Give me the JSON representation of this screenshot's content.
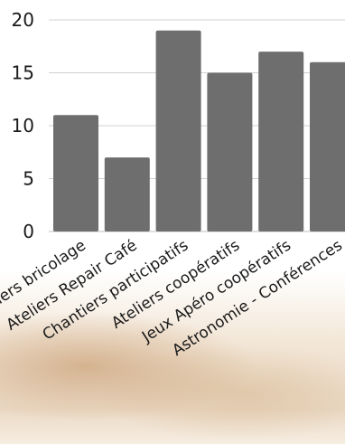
{
  "chart_data": {
    "type": "bar",
    "categories": [
      "Ateliers bricolage",
      "Ateliers Repair Café",
      "Chantiers participatifs",
      "Ateliers coopératifs",
      "Jeux Apéro coopératifs",
      "Astronomie - Conférences"
    ],
    "values": [
      11,
      7,
      19,
      15,
      17,
      16
    ],
    "ylim": [
      0,
      20
    ],
    "yticks": [
      0,
      5,
      10,
      15,
      20
    ],
    "grid": true,
    "legend": "none",
    "colors": {
      "bar": "#6e6e6e",
      "grid": "#d0d0d0"
    }
  }
}
